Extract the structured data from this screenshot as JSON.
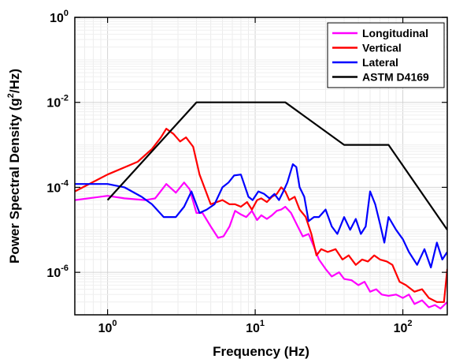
{
  "chart_data": {
    "type": "line",
    "title": "",
    "xlabel": "Frequency (Hz)",
    "ylabel_prefix": "Power Spectral Density (g",
    "ylabel_sup": "2",
    "ylabel_suffix": "/Hz)",
    "x_scale": "log",
    "y_scale": "log",
    "xlim": [
      0.6,
      200
    ],
    "ylim": [
      1e-07,
      1
    ],
    "grid": true,
    "legend_position": "top-right",
    "x_ticks": [
      {
        "value": 1,
        "base": "10",
        "exp": "0"
      },
      {
        "value": 10,
        "base": "10",
        "exp": "1"
      },
      {
        "value": 100,
        "base": "10",
        "exp": "2"
      }
    ],
    "y_ticks": [
      {
        "value": 1e-06,
        "base": "10",
        "exp": "-6"
      },
      {
        "value": 0.0001,
        "base": "10",
        "exp": "-4"
      },
      {
        "value": 0.01,
        "base": "10",
        "exp": "-2"
      },
      {
        "value": 1,
        "base": "10",
        "exp": "0"
      }
    ],
    "series": [
      {
        "name": "Longitudinal",
        "color": "#ff00ff",
        "x": [
          0.6,
          1.0,
          1.3,
          1.8,
          2.1,
          2.5,
          2.9,
          3.3,
          3.6,
          4.0,
          4.4,
          5.0,
          5.6,
          6.1,
          6.7,
          7.3,
          8.0,
          8.7,
          9.5,
          10.3,
          11.0,
          12.0,
          13.0,
          14.0,
          15.0,
          16.0,
          17.5,
          19.0,
          21.0,
          23.0,
          25.0,
          27.0,
          30.0,
          33.0,
          37.0,
          40.0,
          45.0,
          50.0,
          55.0,
          60.0,
          66.0,
          72.0,
          80.0,
          90.0,
          100.0,
          110.0,
          120.0,
          135.0,
          150.0,
          165.0,
          180.0,
          200.0
        ],
        "y": [
          5e-05,
          6.3e-05,
          5.5e-05,
          5e-05,
          5.5e-05,
          0.00012,
          7.5e-05,
          0.00013,
          9e-05,
          2.5e-05,
          2.5e-05,
          1.2e-05,
          6.5e-06,
          7e-06,
          1.2e-05,
          2.8e-05,
          2.3e-05,
          2e-05,
          2.8e-05,
          1.7e-05,
          2.2e-05,
          1.8e-05,
          2.2e-05,
          2.8e-05,
          3e-05,
          3.5e-05,
          2.5e-05,
          1.4e-05,
          7e-06,
          8e-06,
          4e-06,
          2e-06,
          1.2e-06,
          8e-07,
          1e-06,
          7e-07,
          6.5e-07,
          5e-07,
          6e-07,
          3.5e-07,
          4e-07,
          3e-07,
          2.8e-07,
          3e-07,
          2.5e-07,
          3e-07,
          1.8e-07,
          2.2e-07,
          1.5e-07,
          1.7e-07,
          1.4e-07,
          2e-07
        ]
      },
      {
        "name": "Vertical",
        "color": "#ff0000",
        "x": [
          0.6,
          1.0,
          1.6,
          2.0,
          2.3,
          2.5,
          2.8,
          3.1,
          3.4,
          3.8,
          4.2,
          5.0,
          5.5,
          6.0,
          6.7,
          7.3,
          8.0,
          8.8,
          9.5,
          10.3,
          11.0,
          12.0,
          13.0,
          14.0,
          15.0,
          16.0,
          17.0,
          18.5,
          20.0,
          22.0,
          24.0,
          26.0,
          28.0,
          31.0,
          35.0,
          39.0,
          43.0,
          48.0,
          53.0,
          58.0,
          64.0,
          70.0,
          78.0,
          85.0,
          95.0,
          105.0,
          120.0,
          135.0,
          150.0,
          170.0,
          190.0,
          200.0
        ],
        "y": [
          8e-05,
          0.0002,
          0.0004,
          0.0008,
          0.0015,
          0.0024,
          0.0018,
          0.0012,
          0.0015,
          0.0009,
          0.0002,
          4e-05,
          4.5e-05,
          5e-05,
          4e-05,
          4e-05,
          3.5e-05,
          4.5e-05,
          3e-05,
          5e-05,
          5.5e-05,
          4.5e-05,
          6e-05,
          7e-05,
          0.0001,
          8e-05,
          5e-05,
          6e-05,
          3e-05,
          2e-05,
          8e-06,
          2.5e-06,
          3.5e-06,
          3e-06,
          3.5e-06,
          2e-06,
          2.5e-06,
          1.5e-06,
          2e-06,
          1.8e-06,
          2.5e-06,
          2e-06,
          1.8e-06,
          1.5e-06,
          6e-07,
          5e-07,
          3.5e-07,
          4e-07,
          2.5e-07,
          2e-07,
          2e-07,
          1.2e-06
        ]
      },
      {
        "name": "Lateral",
        "color": "#0000ff",
        "x": [
          0.6,
          1.0,
          1.3,
          1.7,
          2.0,
          2.4,
          2.9,
          3.3,
          3.7,
          4.2,
          4.7,
          5.3,
          6.0,
          6.6,
          7.2,
          8.0,
          9.0,
          9.6,
          10.5,
          11.5,
          12.5,
          13.5,
          14.5,
          15.5,
          16.5,
          18.0,
          19.0,
          20.0,
          21.5,
          23.0,
          25.0,
          27.0,
          30.0,
          33.0,
          36.0,
          40.0,
          44.0,
          48.0,
          52.0,
          56.0,
          60.0,
          65.0,
          70.0,
          75.0,
          80.0,
          90.0,
          100.0,
          110.0,
          125.0,
          140.0,
          155.0,
          170.0,
          185.0,
          200.0
        ],
        "y": [
          0.00012,
          0.00012,
          0.0001,
          6e-05,
          4e-05,
          2e-05,
          2e-05,
          3.5e-05,
          8e-05,
          2.5e-05,
          3e-05,
          4e-05,
          0.0001,
          0.00013,
          0.00019,
          0.0002,
          6e-05,
          5e-05,
          8e-05,
          7e-05,
          5.5e-05,
          7e-05,
          5e-05,
          8e-05,
          0.00013,
          0.00035,
          0.0003,
          0.0001,
          6e-05,
          1.6e-05,
          2e-05,
          2e-05,
          3e-05,
          1.2e-05,
          8e-06,
          2e-05,
          1e-05,
          1.8e-05,
          8e-06,
          1.2e-05,
          8e-05,
          4e-05,
          1.4e-05,
          5e-06,
          2e-05,
          1e-05,
          6e-06,
          3e-06,
          1.5e-06,
          3.5e-06,
          1.3e-06,
          5e-06,
          2e-06,
          3e-06
        ]
      },
      {
        "name": "ASTM D4169",
        "color": "#000000",
        "x": [
          1,
          4,
          16,
          40,
          80,
          200
        ],
        "y": [
          5e-05,
          0.01,
          0.01,
          0.001,
          0.001,
          1e-05
        ]
      }
    ]
  }
}
